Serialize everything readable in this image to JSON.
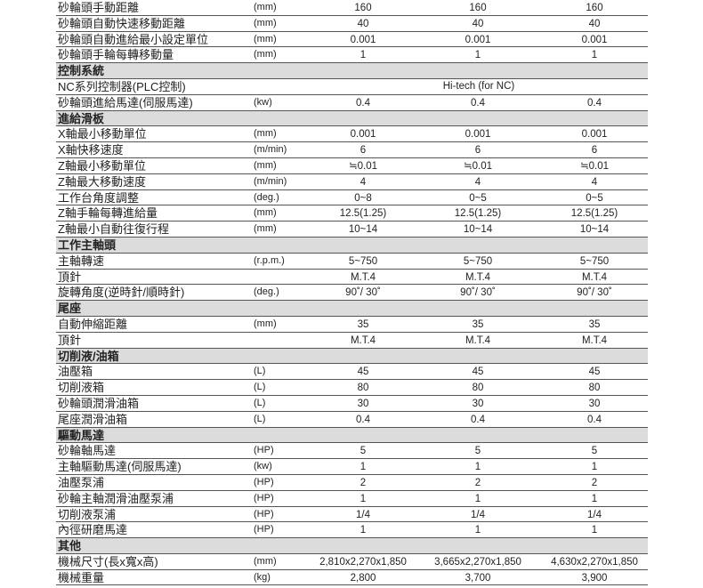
{
  "rows": [
    {
      "type": "data",
      "name": "砂輪頭手動距離",
      "unit": "(mm)",
      "values": [
        "160",
        "160",
        "160"
      ]
    },
    {
      "type": "data",
      "name": "砂輪頭自動快速移動距離",
      "unit": "(mm)",
      "values": [
        "40",
        "40",
        "40"
      ]
    },
    {
      "type": "data",
      "name": "砂輪頭自動進給最小設定單位",
      "unit": "(mm)",
      "values": [
        "0.001",
        "0.001",
        "0.001"
      ]
    },
    {
      "type": "data",
      "name": "砂輪頭手輪每轉移動量",
      "unit": "(mm)",
      "values": [
        "1",
        "1",
        "1"
      ]
    },
    {
      "type": "section",
      "name": "控制系統"
    },
    {
      "type": "data",
      "name": "NC系列控制器(PLC控制)",
      "unit": "",
      "span": "Hi-tech (for NC)"
    },
    {
      "type": "data",
      "name": "砂輪頭進給馬達(伺服馬達)",
      "unit": "(kw)",
      "values": [
        "0.4",
        "0.4",
        "0.4"
      ]
    },
    {
      "type": "section",
      "name": "進給滑板"
    },
    {
      "type": "data",
      "name": "X軸最小移動單位",
      "unit": "(mm)",
      "values": [
        "0.001",
        "0.001",
        "0.001"
      ]
    },
    {
      "type": "data",
      "name": "X軸快移速度",
      "unit": "(m/min)",
      "values": [
        "6",
        "6",
        "6"
      ]
    },
    {
      "type": "data",
      "name": "Z軸最小移動單位",
      "unit": "(mm)",
      "values": [
        "≒0.01",
        "≒0.01",
        "≒0.01"
      ]
    },
    {
      "type": "data",
      "name": "Z軸最大移動速度",
      "unit": "(m/min)",
      "values": [
        "4",
        "4",
        "4"
      ]
    },
    {
      "type": "data",
      "name": "工作台角度調整",
      "unit": "(deg.)",
      "values": [
        "0~8",
        "0~5",
        "0~5"
      ]
    },
    {
      "type": "data",
      "name": "Z軸手輪每轉進給量",
      "unit": "(mm)",
      "values": [
        "12.5(1.25)",
        "12.5(1.25)",
        "12.5(1.25)"
      ]
    },
    {
      "type": "data",
      "name": "Z軸最小自動往復行程",
      "unit": "(mm)",
      "values": [
        "10~14",
        "10~14",
        "10~14"
      ]
    },
    {
      "type": "section",
      "name": "工作主軸頭"
    },
    {
      "type": "data",
      "name": "主軸轉速",
      "unit": "(r.p.m.)",
      "values": [
        "5~750",
        "5~750",
        "5~750"
      ]
    },
    {
      "type": "data",
      "name": "頂針",
      "unit": "",
      "values": [
        "M.T.4",
        "M.T.4",
        "M.T.4"
      ]
    },
    {
      "type": "data",
      "name": "旋轉角度(逆時針/順時針)",
      "unit": "(deg.)",
      "values": [
        "90˚/ 30˚",
        "90˚/ 30˚",
        "90˚/ 30˚"
      ]
    },
    {
      "type": "section",
      "name": "尾座"
    },
    {
      "type": "data",
      "name": "自動伸縮距離",
      "unit": "(mm)",
      "values": [
        "35",
        "35",
        "35"
      ]
    },
    {
      "type": "data",
      "name": "頂針",
      "unit": "",
      "values": [
        "M.T.4",
        "M.T.4",
        "M.T.4"
      ]
    },
    {
      "type": "section",
      "name": "切削液/油箱"
    },
    {
      "type": "data",
      "name": "油壓箱",
      "unit": "(L)",
      "values": [
        "45",
        "45",
        "45"
      ]
    },
    {
      "type": "data",
      "name": "切削液箱",
      "unit": "(L)",
      "values": [
        "80",
        "80",
        "80"
      ]
    },
    {
      "type": "data",
      "name": "砂輪頭潤滑油箱",
      "unit": "(L)",
      "values": [
        "30",
        "30",
        "30"
      ]
    },
    {
      "type": "data",
      "name": "尾座潤滑油箱",
      "unit": "(L)",
      "values": [
        "0.4",
        "0.4",
        "0.4"
      ]
    },
    {
      "type": "section",
      "name": "驅動馬達"
    },
    {
      "type": "data",
      "name": "砂輪軸馬達",
      "unit": "(HP)",
      "values": [
        "5",
        "5",
        "5"
      ]
    },
    {
      "type": "data",
      "name": "主軸驅動馬達(伺服馬達)",
      "unit": "(kw)",
      "values": [
        "1",
        "1",
        "1"
      ]
    },
    {
      "type": "data",
      "name": "油壓泵浦",
      "unit": "(HP)",
      "values": [
        "2",
        "2",
        "2"
      ]
    },
    {
      "type": "data",
      "name": "砂輪主軸潤滑油壓泵浦",
      "unit": "(HP)",
      "values": [
        "1",
        "1",
        "1"
      ]
    },
    {
      "type": "data",
      "name": "切削液泵浦",
      "unit": "(HP)",
      "values": [
        "1/4",
        "1/4",
        "1/4"
      ]
    },
    {
      "type": "data",
      "name": "內徑研磨馬達",
      "unit": "(HP)",
      "values": [
        "1",
        "1",
        "1"
      ]
    },
    {
      "type": "section",
      "name": "其他"
    },
    {
      "type": "data",
      "name": "機械尺寸(長x寬x高)",
      "unit": "(mm)",
      "values": [
        "2,810x2,270x1,850",
        "3,665x2,270x1,850",
        "4,630x2,270x1,850"
      ]
    },
    {
      "type": "data",
      "name": "機械重量",
      "unit": "(kg)",
      "values": [
        "2,800",
        "3,700",
        "3,900"
      ]
    }
  ]
}
